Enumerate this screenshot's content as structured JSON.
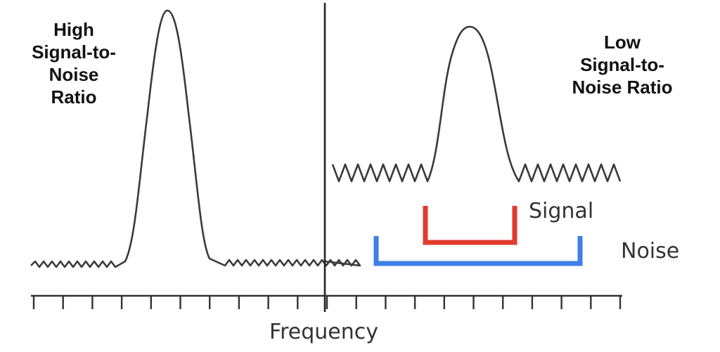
{
  "panels": {
    "high_label_lines": [
      "High",
      "Signal-to-",
      "Noise",
      "Ratio"
    ],
    "low_label_lines": [
      "Low",
      "Signal-to-",
      "Noise Ratio"
    ]
  },
  "legend": {
    "signal_label": "Signal",
    "noise_label": "Noise",
    "signal_color": "#e03c2e",
    "noise_color": "#3f7fe8"
  },
  "axis": {
    "xlabel": "Frequency"
  },
  "colors": {
    "curve": "#3a3a3a",
    "axis": "#333333"
  }
}
